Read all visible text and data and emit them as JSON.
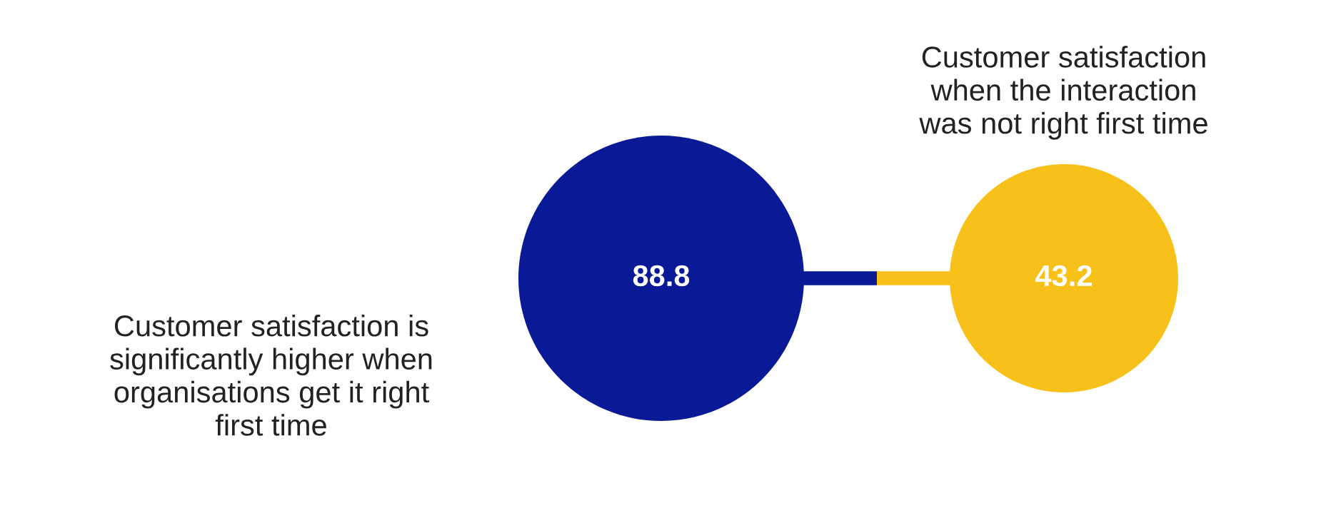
{
  "chart_data": {
    "type": "other",
    "categories": [
      "Customer satisfaction is\nsignificantly higher when\norganisations get it right\nfirst time",
      "Customer satisfaction\nwhen the interaction\nwas not right first time"
    ],
    "values": [
      88.8,
      43.2
    ],
    "colors": [
      "#0a1a96",
      "#f7c11a"
    ],
    "data_labels": true
  }
}
